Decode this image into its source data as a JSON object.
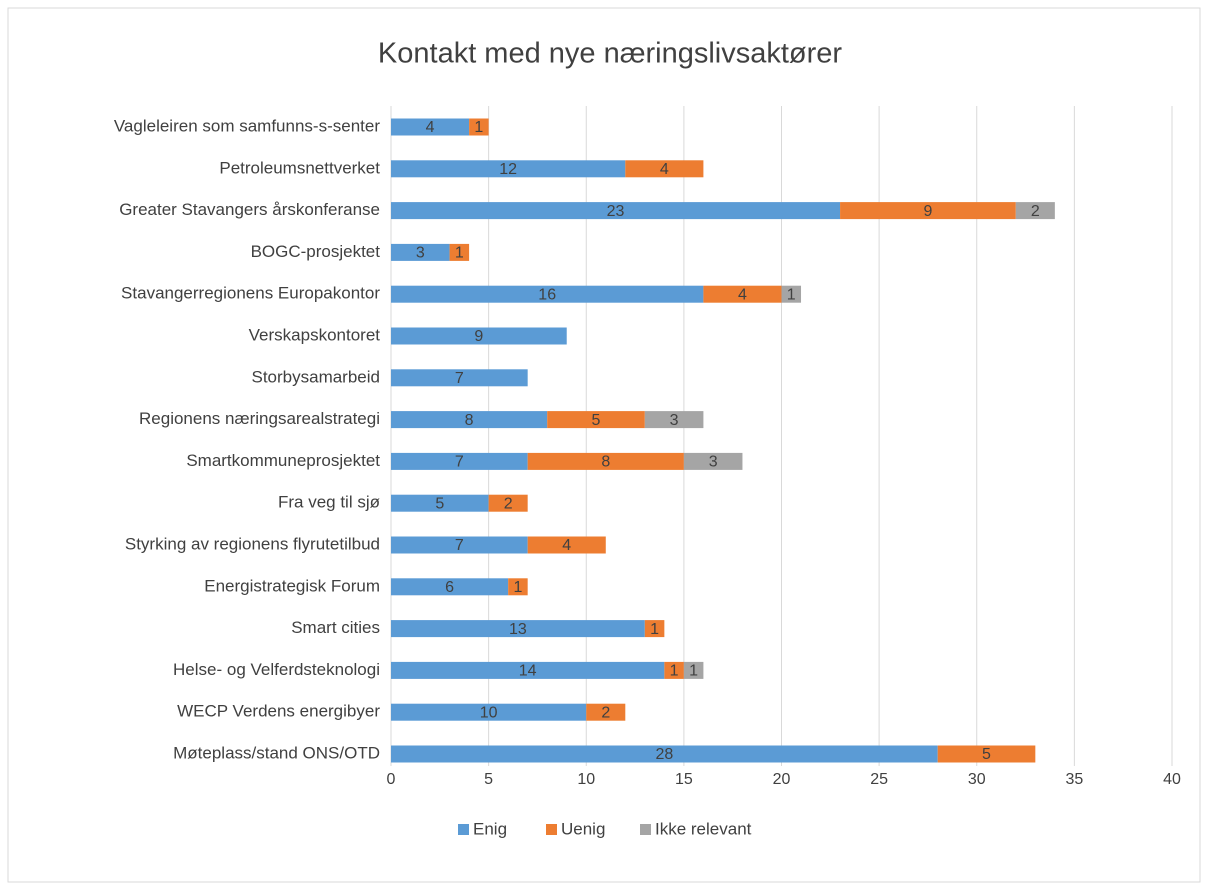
{
  "chart_data": {
    "type": "stacked-barh",
    "title": "Kontakt med nye næringslivsaktører",
    "categories": [
      "Vagleleiren som samfunns-s-senter",
      "Petroleumsnettverket",
      "Greater Stavangers årskonferanse",
      "BOGC-prosjektet",
      "Stavangerregionens Europakontor",
      "Verskapskontoret",
      "Storbysamarbeid",
      "Regionens næringsarealstrategi",
      "Smartkommuneprosjektet",
      "Fra veg til sjø",
      "Styrking av regionens flyrutetilbud",
      "Energistrategisk Forum",
      "Smart cities",
      "Helse- og Velferdsteknologi",
      "WECP Verdens energibyer",
      "Møteplass/stand ONS/OTD"
    ],
    "series": [
      {
        "name": "Enig",
        "color": "#5b9bd5",
        "values": [
          4,
          12,
          23,
          3,
          16,
          9,
          7,
          8,
          7,
          5,
          7,
          6,
          13,
          14,
          10,
          28
        ]
      },
      {
        "name": "Uenig",
        "color": "#ed7d31",
        "values": [
          1,
          4,
          9,
          1,
          4,
          null,
          null,
          5,
          8,
          2,
          4,
          1,
          1,
          1,
          2,
          5
        ]
      },
      {
        "name": "Ikke relevant",
        "color": "#a5a5a5",
        "values": [
          null,
          null,
          2,
          null,
          1,
          null,
          null,
          3,
          3,
          null,
          null,
          null,
          null,
          1,
          null,
          null
        ]
      }
    ],
    "xlim": [
      0,
      40
    ],
    "xticks": [
      0,
      5,
      10,
      15,
      20,
      25,
      30,
      35,
      40
    ],
    "grid": true,
    "legend": "bottom"
  }
}
